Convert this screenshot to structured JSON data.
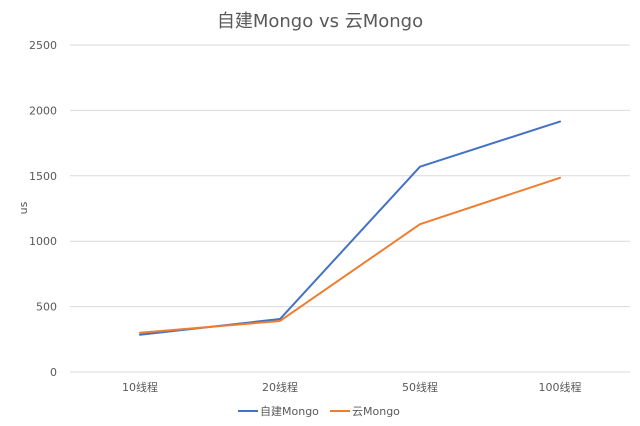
{
  "chart_data": {
    "type": "line",
    "title": "自建Mongo vs 云Mongo",
    "xlabel": "",
    "ylabel": "us",
    "categories": [
      "10线程",
      "20线程",
      "50线程",
      "100线程"
    ],
    "ylim": [
      0,
      2500
    ],
    "yticks": [
      0,
      500,
      1000,
      1500,
      2000,
      2500
    ],
    "grid": true,
    "legend_position": "bottom",
    "series": [
      {
        "name": "自建Mongo",
        "color": "#4472c4",
        "values": [
          285,
          405,
          1570,
          1915
        ]
      },
      {
        "name": "云Mongo",
        "color": "#ed7d31",
        "values": [
          300,
          390,
          1130,
          1485
        ]
      }
    ]
  }
}
